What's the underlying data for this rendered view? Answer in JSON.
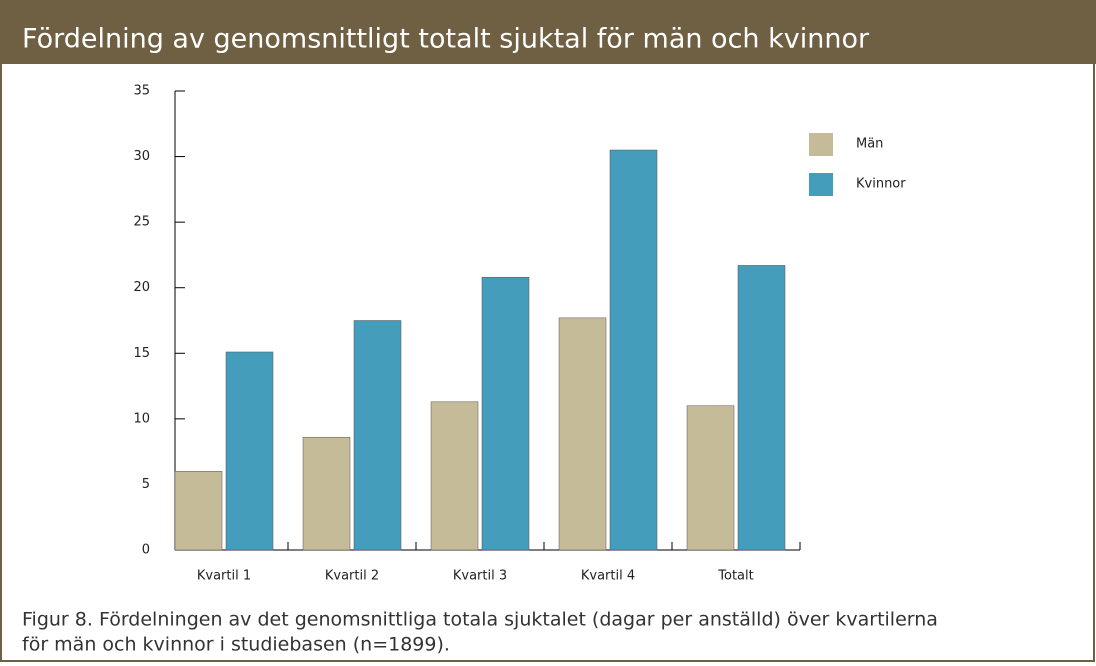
{
  "chart_data": {
    "type": "bar",
    "title": "Fördelning av genomsnittligt totalt sjuktal för män och kvinnor",
    "categories": [
      "Kvartil 1",
      "Kvartil 2",
      "Kvartil 3",
      "Kvartil 4",
      "Totalt"
    ],
    "series": [
      {
        "name": "Män",
        "color": "#c5bb98",
        "values": [
          6.0,
          8.6,
          11.3,
          17.7,
          11.0
        ]
      },
      {
        "name": "Kvinnor",
        "color": "#449dbb",
        "values": [
          15.1,
          17.5,
          20.8,
          30.5,
          21.7
        ]
      }
    ],
    "ylim": [
      0,
      35
    ],
    "yticks": [
      0,
      5,
      10,
      15,
      20,
      25,
      30,
      35
    ],
    "caption": [
      "Figur 8. Fördelningen av det genomsnittliga totala sjuktalet (dagar per anställd) över kvartilerna",
      "för män och kvinnor i studiebasen (n=1899)."
    ]
  }
}
